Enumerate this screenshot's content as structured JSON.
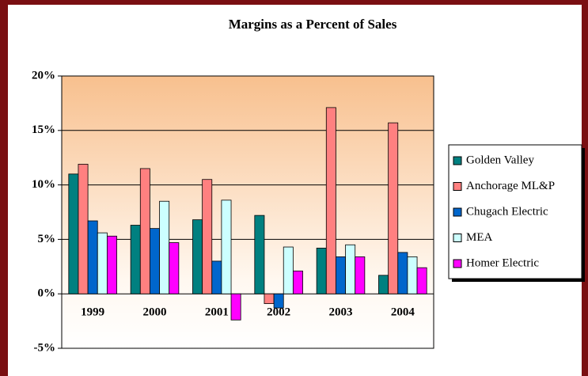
{
  "chart_data": {
    "type": "bar",
    "title": "Margins as a Percent of Sales",
    "categories": [
      "1999",
      "2000",
      "2001",
      "2002",
      "2003",
      "2004"
    ],
    "series": [
      {
        "name": "Golden Valley",
        "color": "#008080",
        "values": [
          11.0,
          6.3,
          6.8,
          7.2,
          4.2,
          1.7
        ]
      },
      {
        "name": "Anchorage ML&P",
        "color": "#ff8080",
        "values": [
          11.9,
          11.5,
          10.5,
          -0.9,
          17.1,
          15.7
        ]
      },
      {
        "name": "Chugach Electric",
        "color": "#0066cc",
        "values": [
          6.7,
          6.0,
          3.0,
          -1.3,
          3.4,
          3.8
        ]
      },
      {
        "name": "MEA",
        "color": "#ccffff",
        "values": [
          5.6,
          8.5,
          8.6,
          4.3,
          4.5,
          3.4
        ]
      },
      {
        "name": "Homer Electric",
        "color": "#ff00ff",
        "values": [
          5.3,
          4.7,
          -2.4,
          2.1,
          3.4,
          2.4
        ]
      }
    ],
    "ylim": [
      -5,
      20
    ],
    "yticks": [
      {
        "value": -5,
        "label": "-5%"
      },
      {
        "value": 0,
        "label": "0%"
      },
      {
        "value": 5,
        "label": "5%"
      },
      {
        "value": 10,
        "label": "10%"
      },
      {
        "value": 15,
        "label": "15%"
      },
      {
        "value": 20,
        "label": "20%"
      }
    ],
    "grid": true,
    "legend": "right"
  }
}
